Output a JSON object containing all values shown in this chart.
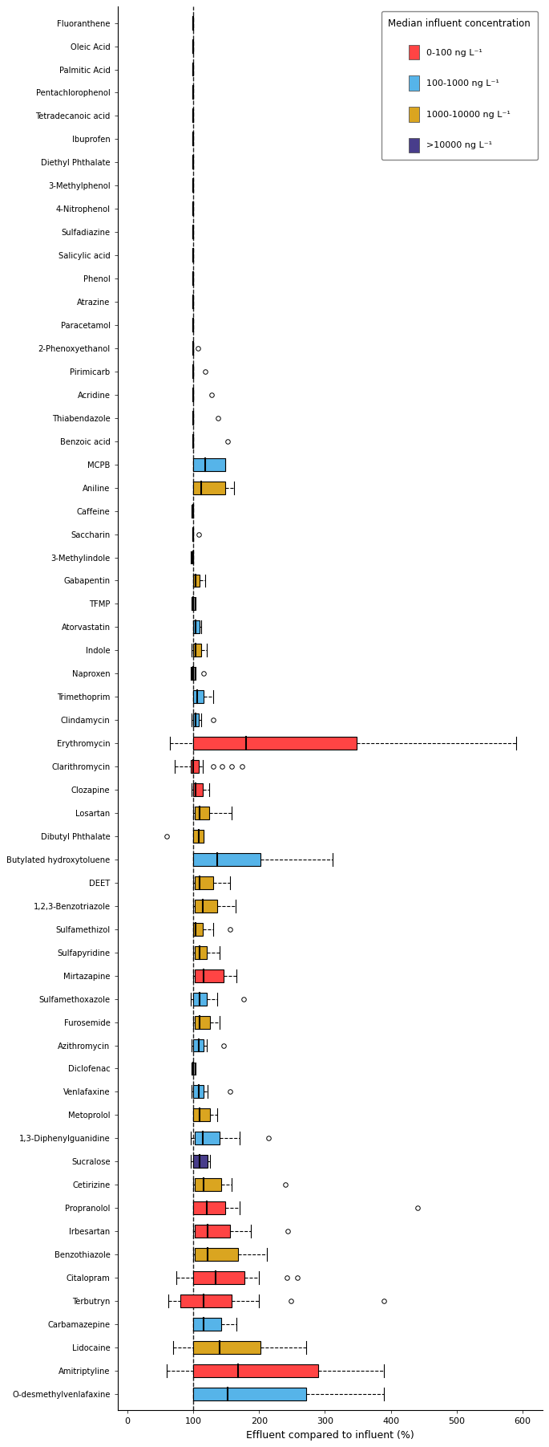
{
  "compounds": [
    "Fluoranthene",
    "Oleic Acid",
    "Palmitic Acid",
    "Pentachlorophenol",
    "Tetradecanoic acid",
    "Ibuprofen",
    "Diethyl Phthalate",
    "3-Methylphenol",
    "4-Nitrophenol",
    "Sulfadiazine",
    "Salicylic acid",
    "Phenol",
    "Atrazine",
    "Paracetamol",
    "2-Phenoxyethanol",
    "Pirimicarb",
    "Acridine",
    "Thiabendazole",
    "Benzoic acid",
    "MCPB",
    "Aniline",
    "Caffeine",
    "Saccharin",
    "3-Methylindole",
    "Gabapentin",
    "TFMP",
    "Atorvastatin",
    "Indole",
    "Naproxen",
    "Trimethoprim",
    "Clindamycin",
    "Erythromycin",
    "Clarithromycin",
    "Clozapine",
    "Losartan",
    "Dibutyl Phthalate",
    "Butylated hydroxytoluene",
    "DEET",
    "1,2,3-Benzotriazole",
    "Sulfamethizol",
    "Sulfapyridine",
    "Mirtazapine",
    "Sulfamethoxazole",
    "Furosemide",
    "Azithromycin",
    "Diclofenac",
    "Venlafaxine",
    "Metoprolol",
    "1,3-Diphenylguanidine",
    "Sucralose",
    "Cetirizine",
    "Propranolol",
    "Irbesartan",
    "Benzothiazole",
    "Citalopram",
    "Terbutryn",
    "Carbamazepine",
    "Lidocaine",
    "Amitriptyline",
    "O-desmethylvenlafaxine"
  ],
  "color_map": {
    "Fluoranthene": "#A0A0A0",
    "Oleic Acid": "#A0A0A0",
    "Palmitic Acid": "#A0A0A0",
    "Pentachlorophenol": "#A0A0A0",
    "Tetradecanoic acid": "#A0A0A0",
    "Ibuprofen": "#A0A0A0",
    "Diethyl Phthalate": "#A0A0A0",
    "3-Methylphenol": "#A0A0A0",
    "4-Nitrophenol": "#A0A0A0",
    "Sulfadiazine": "#A0A0A0",
    "Salicylic acid": "#A0A0A0",
    "Phenol": "#A0A0A0",
    "Atrazine": "#A0A0A0",
    "Paracetamol": "#A0A0A0",
    "2-Phenoxyethanol": "#A0A0A0",
    "Pirimicarb": "#A0A0A0",
    "Acridine": "#A0A0A0",
    "Thiabendazole": "#A0A0A0",
    "Benzoic acid": "#A0A0A0",
    "MCPB": "#56B4E9",
    "Aniline": "#DAA520",
    "Caffeine": "#A0A0A0",
    "Saccharin": "#A0A0A0",
    "3-Methylindole": "#A0A0A0",
    "Gabapentin": "#DAA520",
    "TFMP": "#A0A0A0",
    "Atorvastatin": "#56B4E9",
    "Indole": "#DAA520",
    "Naproxen": "#A0A0A0",
    "Trimethoprim": "#56B4E9",
    "Clindamycin": "#56B4E9",
    "Erythromycin": "#FF4444",
    "Clarithromycin": "#FF4444",
    "Clozapine": "#FF4444",
    "Losartan": "#DAA520",
    "Dibutyl Phthalate": "#DAA520",
    "Butylated hydroxytoluene": "#56B4E9",
    "DEET": "#DAA520",
    "1,2,3-Benzotriazole": "#DAA520",
    "Sulfamethizol": "#DAA520",
    "Sulfapyridine": "#DAA520",
    "Mirtazapine": "#FF4444",
    "Sulfamethoxazole": "#56B4E9",
    "Furosemide": "#DAA520",
    "Azithromycin": "#56B4E9",
    "Diclofenac": "#A0A0A0",
    "Venlafaxine": "#56B4E9",
    "Metoprolol": "#DAA520",
    "1,3-Diphenylguanidine": "#56B4E9",
    "Sucralose": "#483D8B",
    "Cetirizine": "#DAA520",
    "Propranolol": "#FF4444",
    "Irbesartan": "#FF4444",
    "Benzothiazole": "#DAA520",
    "Citalopram": "#FF4444",
    "Terbutryn": "#FF4444",
    "Carbamazepine": "#56B4E9",
    "Lidocaine": "#DAA520",
    "Amitriptyline": "#FF4444",
    "O-desmethylvenlafaxine": "#56B4E9"
  },
  "box_data": {
    "Fluoranthene": {
      "q1": 99,
      "med": 100,
      "q3": 100,
      "whislo": 99,
      "whishi": 100,
      "fliers": []
    },
    "Oleic Acid": {
      "q1": 99,
      "med": 100,
      "q3": 100,
      "whislo": 99,
      "whishi": 100,
      "fliers": []
    },
    "Palmitic Acid": {
      "q1": 99,
      "med": 100,
      "q3": 100,
      "whislo": 99,
      "whishi": 100,
      "fliers": []
    },
    "Pentachlorophenol": {
      "q1": 99,
      "med": 100,
      "q3": 100,
      "whislo": 99,
      "whishi": 100,
      "fliers": []
    },
    "Tetradecanoic acid": {
      "q1": 99,
      "med": 100,
      "q3": 100,
      "whislo": 99,
      "whishi": 100,
      "fliers": []
    },
    "Ibuprofen": {
      "q1": 99,
      "med": 100,
      "q3": 100,
      "whislo": 99,
      "whishi": 100,
      "fliers": []
    },
    "Diethyl Phthalate": {
      "q1": 99,
      "med": 100,
      "q3": 100,
      "whislo": 99,
      "whishi": 100,
      "fliers": []
    },
    "3-Methylphenol": {
      "q1": 99,
      "med": 100,
      "q3": 100,
      "whislo": 99,
      "whishi": 100,
      "fliers": []
    },
    "4-Nitrophenol": {
      "q1": 99,
      "med": 100,
      "q3": 100,
      "whislo": 99,
      "whishi": 100,
      "fliers": []
    },
    "Sulfadiazine": {
      "q1": 99,
      "med": 100,
      "q3": 100,
      "whislo": 99,
      "whishi": 100,
      "fliers": []
    },
    "Salicylic acid": {
      "q1": 99,
      "med": 100,
      "q3": 100,
      "whislo": 99,
      "whishi": 100,
      "fliers": []
    },
    "Phenol": {
      "q1": 99,
      "med": 100,
      "q3": 100,
      "whislo": 99,
      "whishi": 100,
      "fliers": []
    },
    "Atrazine": {
      "q1": 99,
      "med": 100,
      "q3": 100,
      "whislo": 99,
      "whishi": 100,
      "fliers": []
    },
    "Paracetamol": {
      "q1": 99,
      "med": 100,
      "q3": 100,
      "whislo": 99,
      "whishi": 100,
      "fliers": []
    },
    "2-Phenoxyethanol": {
      "q1": 100,
      "med": 100,
      "q3": 100,
      "whislo": 100,
      "whishi": 100,
      "fliers": [
        107
      ]
    },
    "Pirimicarb": {
      "q1": 100,
      "med": 100,
      "q3": 100,
      "whislo": 100,
      "whishi": 100,
      "fliers": [
        118
      ]
    },
    "Acridine": {
      "q1": 100,
      "med": 100,
      "q3": 100,
      "whislo": 100,
      "whishi": 100,
      "fliers": [
        128
      ]
    },
    "Thiabendazole": {
      "q1": 100,
      "med": 100,
      "q3": 100,
      "whislo": 100,
      "whishi": 100,
      "fliers": [
        138
      ]
    },
    "Benzoic acid": {
      "q1": 100,
      "med": 100,
      "q3": 100,
      "whislo": 100,
      "whishi": 100,
      "fliers": [
        152
      ]
    },
    "MCPB": {
      "q1": 100,
      "med": 118,
      "q3": 148,
      "whislo": 100,
      "whishi": 148,
      "fliers": []
    },
    "Aniline": {
      "q1": 100,
      "med": 112,
      "q3": 148,
      "whislo": 100,
      "whishi": 162,
      "fliers": []
    },
    "Caffeine": {
      "q1": 98,
      "med": 100,
      "q3": 100,
      "whislo": 98,
      "whishi": 100,
      "fliers": []
    },
    "Saccharin": {
      "q1": 99,
      "med": 100,
      "q3": 100,
      "whislo": 99,
      "whishi": 100,
      "fliers": [
        108
      ]
    },
    "3-Methylindole": {
      "q1": 98,
      "med": 100,
      "q3": 100,
      "whislo": 96,
      "whishi": 100,
      "fliers": []
    },
    "Gabapentin": {
      "q1": 100,
      "med": 104,
      "q3": 110,
      "whislo": 100,
      "whishi": 118,
      "fliers": []
    },
    "TFMP": {
      "q1": 99,
      "med": 100,
      "q3": 102,
      "whislo": 97,
      "whishi": 104,
      "fliers": []
    },
    "Atorvastatin": {
      "q1": 100,
      "med": 104,
      "q3": 110,
      "whislo": 100,
      "whishi": 112,
      "fliers": []
    },
    "Indole": {
      "q1": 100,
      "med": 104,
      "q3": 112,
      "whislo": 98,
      "whishi": 120,
      "fliers": []
    },
    "Naproxen": {
      "q1": 98,
      "med": 100,
      "q3": 102,
      "whislo": 96,
      "whishi": 104,
      "fliers": [
        116
      ]
    },
    "Trimethoprim": {
      "q1": 100,
      "med": 106,
      "q3": 116,
      "whislo": 100,
      "whishi": 130,
      "fliers": []
    },
    "Clindamycin": {
      "q1": 100,
      "med": 104,
      "q3": 108,
      "whislo": 98,
      "whishi": 112,
      "fliers": [
        130
      ]
    },
    "Erythromycin": {
      "q1": 100,
      "med": 180,
      "q3": 348,
      "whislo": 65,
      "whishi": 590,
      "fliers": []
    },
    "Clarithromycin": {
      "q1": 96,
      "med": 100,
      "q3": 108,
      "whislo": 72,
      "whishi": 114,
      "fliers": [
        130,
        144,
        158,
        174
      ]
    },
    "Clozapine": {
      "q1": 100,
      "med": 104,
      "q3": 114,
      "whislo": 98,
      "whishi": 124,
      "fliers": []
    },
    "Losartan": {
      "q1": 102,
      "med": 110,
      "q3": 124,
      "whislo": 100,
      "whishi": 158,
      "fliers": []
    },
    "Dibutyl Phthalate": {
      "q1": 100,
      "med": 108,
      "q3": 116,
      "whislo": 100,
      "whishi": 116,
      "fliers": [
        60
      ]
    },
    "Butylated hydroxytoluene": {
      "q1": 100,
      "med": 136,
      "q3": 202,
      "whislo": 100,
      "whishi": 312,
      "fliers": []
    },
    "DEET": {
      "q1": 102,
      "med": 110,
      "q3": 130,
      "whislo": 100,
      "whishi": 156,
      "fliers": []
    },
    "1,2,3-Benzotriazole": {
      "q1": 102,
      "med": 114,
      "q3": 136,
      "whislo": 100,
      "whishi": 164,
      "fliers": []
    },
    "Sulfamethizol": {
      "q1": 100,
      "med": 104,
      "q3": 114,
      "whislo": 100,
      "whishi": 130,
      "fliers": [
        156
      ]
    },
    "Sulfapyridine": {
      "q1": 102,
      "med": 110,
      "q3": 120,
      "whislo": 100,
      "whishi": 140,
      "fliers": []
    },
    "Mirtazapine": {
      "q1": 102,
      "med": 116,
      "q3": 146,
      "whislo": 100,
      "whishi": 166,
      "fliers": []
    },
    "Sulfamethoxazole": {
      "q1": 100,
      "med": 110,
      "q3": 120,
      "whislo": 96,
      "whishi": 136,
      "fliers": [
        176
      ]
    },
    "Furosemide": {
      "q1": 102,
      "med": 110,
      "q3": 126,
      "whislo": 100,
      "whishi": 140,
      "fliers": []
    },
    "Azithromycin": {
      "q1": 100,
      "med": 108,
      "q3": 116,
      "whislo": 98,
      "whishi": 120,
      "fliers": [
        146
      ]
    },
    "Diclofenac": {
      "q1": 98,
      "med": 100,
      "q3": 102,
      "whislo": 98,
      "whishi": 104,
      "fliers": []
    },
    "Venlafaxine": {
      "q1": 100,
      "med": 108,
      "q3": 116,
      "whislo": 98,
      "whishi": 122,
      "fliers": [
        156
      ]
    },
    "Metoprolol": {
      "q1": 100,
      "med": 110,
      "q3": 126,
      "whislo": 100,
      "whishi": 136,
      "fliers": []
    },
    "1,3-Diphenylguanidine": {
      "q1": 102,
      "med": 114,
      "q3": 140,
      "whislo": 96,
      "whishi": 170,
      "fliers": [
        214
      ]
    },
    "Sucralose": {
      "q1": 100,
      "med": 110,
      "q3": 122,
      "whislo": 96,
      "whishi": 126,
      "fliers": []
    },
    "Cetirizine": {
      "q1": 102,
      "med": 116,
      "q3": 142,
      "whislo": 100,
      "whishi": 158,
      "fliers": [
        240
      ]
    },
    "Propranolol": {
      "q1": 100,
      "med": 120,
      "q3": 148,
      "whislo": 100,
      "whishi": 170,
      "fliers": [
        440
      ]
    },
    "Irbesartan": {
      "q1": 102,
      "med": 122,
      "q3": 156,
      "whislo": 100,
      "whishi": 188,
      "fliers": [
        244
      ]
    },
    "Benzothiazole": {
      "q1": 102,
      "med": 122,
      "q3": 168,
      "whislo": 100,
      "whishi": 212,
      "fliers": []
    },
    "Citalopram": {
      "q1": 100,
      "med": 134,
      "q3": 178,
      "whislo": 74,
      "whishi": 200,
      "fliers": [
        242,
        258
      ]
    },
    "Terbutryn": {
      "q1": 80,
      "med": 116,
      "q3": 158,
      "whislo": 62,
      "whishi": 200,
      "fliers": [
        248,
        390
      ]
    },
    "Carbamazepine": {
      "q1": 100,
      "med": 116,
      "q3": 142,
      "whislo": 100,
      "whishi": 166,
      "fliers": []
    },
    "Lidocaine": {
      "q1": 100,
      "med": 140,
      "q3": 202,
      "whislo": 70,
      "whishi": 272,
      "fliers": []
    },
    "Amitriptyline": {
      "q1": 100,
      "med": 168,
      "q3": 290,
      "whislo": 60,
      "whishi": 390,
      "fliers": []
    },
    "O-desmethylvenlafaxine": {
      "q1": 100,
      "med": 152,
      "q3": 272,
      "whislo": 100,
      "whishi": 390,
      "fliers": []
    }
  },
  "xlabel": "Effluent compared to influent (%)",
  "xticks": [
    0,
    100,
    200,
    300,
    400,
    500,
    600
  ],
  "xtick_labels": [
    "0",
    "100",
    "200",
    "300",
    "400",
    "500",
    "600"
  ],
  "xlim": [
    -15,
    630
  ],
  "vline_x": 100,
  "legend_title": "Median influent concentration",
  "legend_items": [
    {
      "label": "0-100 ng L⁻¹",
      "color": "#FF4444"
    },
    {
      "label": "100-1000 ng L⁻¹",
      "color": "#56B4E9"
    },
    {
      "label": "1000-10000 ng L⁻¹",
      "color": "#DAA520"
    },
    {
      "label": ">10000 ng L⁻¹",
      "color": "#483D8B"
    }
  ],
  "bg_color": "#F0F0F0",
  "panel_bg": "#FFFFFF"
}
